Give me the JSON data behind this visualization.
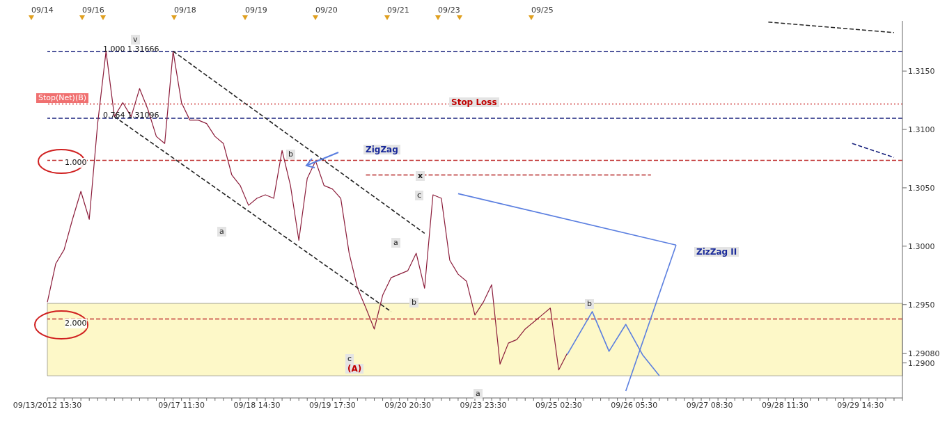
{
  "chart_data": {
    "type": "line",
    "marker": "none",
    "categories": [
      "09/13/2012 13:30",
      null,
      null,
      null,
      null,
      null,
      null,
      null,
      null,
      null,
      null,
      null,
      null,
      null,
      null,
      null,
      "09/17 11:30",
      null,
      null,
      null,
      null,
      null,
      null,
      null,
      null,
      "09/18 14:30",
      null,
      null,
      null,
      null,
      null,
      null,
      null,
      null,
      "09/19 17:30",
      null,
      null,
      null,
      null,
      null,
      null,
      null,
      null,
      "09/20 20:30",
      null,
      null,
      null,
      null,
      null,
      null,
      null,
      null,
      "09/23 23:30",
      null,
      null,
      null,
      null,
      null,
      null,
      null,
      null,
      "09/25 02:30",
      null,
      null,
      null,
      null,
      null,
      null,
      null,
      null,
      "09/26 05:30",
      null,
      null,
      null,
      null,
      null,
      null,
      null,
      null,
      "09/27 08:30",
      null,
      null,
      null,
      null,
      null,
      null,
      null,
      null,
      "09/28 11:30",
      null,
      null,
      null,
      null,
      null,
      null,
      null,
      null,
      "09/29 14:30",
      null,
      null,
      null,
      null,
      null
    ],
    "ylim": [
      1.287,
      1.3193
    ],
    "yticks": [
      {
        "value": 1.29,
        "label": "1.2900"
      },
      {
        "value": 1.2908,
        "label": "1.29080"
      },
      {
        "value": 1.295,
        "label": "1.2950"
      },
      {
        "value": 1.3,
        "label": "1.3000"
      },
      {
        "value": 1.305,
        "label": "1.3050"
      },
      {
        "value": 1.31,
        "label": "1.3100"
      },
      {
        "value": 1.315,
        "label": "1.3150"
      }
    ],
    "series": [
      {
        "color": "#8b1c3a",
        "line_style": "solid",
        "values": [
          1.2952,
          1.2985,
          1.2997,
          1.3023,
          1.3047,
          1.3023,
          1.3105,
          1.3167,
          1.3111,
          1.3123,
          1.3111,
          1.3135,
          1.3117,
          1.3094,
          1.3088,
          1.3167,
          1.3123,
          1.3108,
          1.3108,
          1.3105,
          1.3094,
          1.3088,
          1.3061,
          1.3052,
          1.3035,
          1.3041,
          1.3044,
          1.3041,
          1.3082,
          1.3052,
          1.3005,
          1.3058,
          1.3073,
          1.3052,
          1.3049,
          1.3041,
          1.2994,
          1.2964,
          1.2947,
          1.2929,
          1.2958,
          1.2973,
          1.2976,
          1.2979,
          1.2994,
          1.2964,
          1.3044,
          1.3041,
          1.2988,
          1.2976,
          1.297,
          1.2941,
          1.2952,
          1.2967,
          1.2899,
          1.2917,
          1.292,
          1.2929,
          1.2935,
          1.2941,
          1.2947,
          1.2894,
          1.2908,
          null,
          null,
          null,
          null,
          null,
          null,
          null,
          null,
          null,
          null,
          null,
          null,
          null,
          null,
          null,
          null,
          null,
          null,
          null,
          null,
          null,
          null,
          null,
          null,
          null,
          null,
          null,
          null,
          null,
          null,
          null,
          null,
          null,
          null,
          null,
          null,
          null,
          null,
          null,
          null
        ]
      },
      {
        "color": "#222222",
        "line_style": "dashed",
        "values": [
          null,
          null,
          null,
          null,
          null,
          null,
          null,
          null,
          null,
          null,
          null,
          null,
          null,
          null,
          null,
          1.3167,
          null,
          null,
          null,
          null,
          null,
          null,
          null,
          null,
          null,
          null,
          null,
          null,
          null,
          null,
          null,
          null,
          null,
          null,
          null,
          null,
          null,
          null,
          null,
          null,
          null,
          null,
          null,
          null,
          null,
          1.3011,
          null,
          null,
          null,
          null,
          null,
          null,
          null,
          null,
          null,
          null,
          null,
          null,
          null,
          null,
          null,
          null,
          null,
          null,
          null,
          null,
          null,
          null,
          null,
          null,
          null,
          null,
          null,
          null,
          null,
          null,
          null,
          null,
          null,
          null,
          null,
          null,
          null,
          null,
          null,
          null,
          null,
          null,
          null,
          null,
          null,
          null,
          null,
          null,
          null,
          null,
          null,
          null,
          null,
          null,
          null,
          null,
          null
        ]
      },
      {
        "color": "#222222",
        "line_style": "dashed",
        "values": [
          null,
          null,
          null,
          null,
          null,
          null,
          null,
          null,
          1.3111,
          null,
          null,
          null,
          null,
          null,
          null,
          null,
          null,
          null,
          null,
          null,
          null,
          null,
          null,
          null,
          null,
          null,
          null,
          null,
          null,
          null,
          null,
          null,
          null,
          null,
          null,
          null,
          null,
          null,
          null,
          null,
          null,
          1.2944,
          null,
          null,
          null,
          null,
          null,
          null,
          null,
          null,
          null,
          null,
          null,
          null,
          null,
          null,
          null,
          null,
          null,
          null,
          null,
          null,
          null,
          null,
          null,
          null,
          null,
          null,
          null,
          null,
          null,
          null,
          null,
          null,
          null,
          null,
          null,
          null,
          null,
          null,
          null,
          null,
          null,
          null,
          null,
          null,
          null,
          null,
          null,
          null,
          null,
          null,
          null,
          null,
          null,
          null,
          null,
          null,
          null,
          null,
          null,
          null,
          null
        ]
      },
      {
        "color": "#222222",
        "line_style": "dashed",
        "values": [
          null,
          null,
          null,
          null,
          null,
          null,
          null,
          null,
          null,
          null,
          null,
          null,
          null,
          null,
          null,
          null,
          null,
          null,
          null,
          null,
          null,
          null,
          null,
          null,
          null,
          null,
          null,
          null,
          null,
          null,
          null,
          null,
          null,
          null,
          null,
          null,
          null,
          null,
          null,
          null,
          null,
          null,
          null,
          null,
          null,
          null,
          null,
          null,
          null,
          null,
          null,
          null,
          null,
          null,
          null,
          null,
          null,
          null,
          null,
          null,
          null,
          null,
          null,
          null,
          null,
          null,
          null,
          null,
          null,
          null,
          null,
          null,
          null,
          null,
          null,
          null,
          null,
          null,
          null,
          null,
          null,
          null,
          null,
          null,
          null,
          null,
          1.3192,
          null,
          null,
          null,
          null,
          null,
          null,
          null,
          null,
          null,
          null,
          null,
          null,
          null,
          null,
          1.3183,
          null
        ]
      },
      {
        "color": "#1a237e",
        "line_style": "dashed",
        "values": [
          null,
          null,
          null,
          null,
          null,
          null,
          null,
          null,
          null,
          null,
          null,
          null,
          null,
          null,
          null,
          null,
          null,
          null,
          null,
          null,
          null,
          null,
          null,
          null,
          null,
          null,
          null,
          null,
          null,
          null,
          null,
          null,
          null,
          null,
          null,
          null,
          null,
          null,
          null,
          null,
          null,
          null,
          null,
          null,
          null,
          null,
          null,
          null,
          null,
          null,
          null,
          null,
          null,
          null,
          null,
          null,
          null,
          null,
          null,
          null,
          null,
          null,
          null,
          null,
          null,
          null,
          null,
          null,
          null,
          null,
          null,
          null,
          null,
          null,
          null,
          null,
          null,
          null,
          null,
          null,
          null,
          null,
          null,
          null,
          null,
          null,
          null,
          null,
          null,
          null,
          null,
          null,
          null,
          null,
          null,
          null,
          1.3088,
          null,
          null,
          null,
          null,
          1.3076,
          null
        ]
      },
      {
        "color": "#b22222",
        "line_style": "dashed",
        "values": [
          null,
          null,
          null,
          null,
          null,
          null,
          null,
          null,
          null,
          null,
          null,
          null,
          null,
          null,
          null,
          null,
          null,
          null,
          null,
          null,
          null,
          null,
          null,
          null,
          null,
          null,
          null,
          null,
          null,
          null,
          null,
          null,
          null,
          null,
          null,
          null,
          null,
          null,
          1.3061,
          null,
          null,
          null,
          null,
          null,
          null,
          null,
          null,
          null,
          null,
          null,
          null,
          null,
          null,
          null,
          null,
          null,
          null,
          null,
          null,
          null,
          null,
          null,
          null,
          null,
          null,
          null,
          null,
          null,
          null,
          null,
          null,
          null,
          1.3061,
          null,
          null,
          null,
          null,
          null,
          null,
          null,
          null,
          null,
          null,
          null,
          null,
          null,
          null,
          null,
          null,
          null,
          null,
          null,
          null,
          null,
          null,
          null,
          null,
          null,
          null,
          null,
          null,
          null,
          null
        ]
      },
      {
        "color": "#5b7fe0",
        "line_style": "solid",
        "values": [
          null,
          null,
          null,
          null,
          null,
          null,
          null,
          null,
          null,
          null,
          null,
          null,
          null,
          null,
          null,
          null,
          null,
          null,
          null,
          null,
          null,
          null,
          null,
          null,
          null,
          null,
          null,
          null,
          null,
          null,
          null,
          null,
          null,
          null,
          null,
          null,
          null,
          null,
          null,
          null,
          null,
          null,
          null,
          null,
          null,
          null,
          null,
          null,
          null,
          null,
          null,
          null,
          null,
          null,
          null,
          null,
          null,
          null,
          null,
          null,
          null,
          null,
          1.2907,
          null,
          null,
          1.2944,
          null,
          1.291,
          null,
          1.2933,
          null,
          1.2907,
          null,
          1.2889,
          null,
          null,
          null,
          null,
          null,
          null,
          null,
          null,
          null,
          null,
          null,
          null,
          null,
          null,
          null,
          null,
          null,
          null,
          null,
          null,
          null,
          null,
          null,
          null,
          null,
          null,
          null,
          null,
          null
        ]
      },
      {
        "color": "#5b7fe0",
        "line_style": "solid",
        "values": [
          null,
          null,
          null,
          null,
          null,
          null,
          null,
          null,
          null,
          null,
          null,
          null,
          null,
          null,
          null,
          null,
          null,
          null,
          null,
          null,
          null,
          null,
          null,
          null,
          null,
          null,
          null,
          null,
          null,
          null,
          null,
          null,
          null,
          null,
          null,
          null,
          null,
          null,
          null,
          null,
          null,
          null,
          null,
          null,
          null,
          null,
          null,
          null,
          null,
          1.3045,
          null,
          null,
          null,
          null,
          null,
          null,
          null,
          null,
          null,
          null,
          null,
          null,
          null,
          null,
          null,
          null,
          null,
          null,
          null,
          null,
          null,
          null,
          null,
          null,
          null,
          1.3001,
          null,
          null,
          null,
          null,
          null,
          null,
          null,
          null,
          null,
          null,
          null,
          null,
          null,
          null,
          null,
          null,
          null,
          null,
          null,
          null,
          null,
          null,
          null,
          null,
          null,
          null,
          null
        ]
      },
      {
        "color": "#5b7fe0",
        "line_style": "solid",
        "values": [
          null,
          null,
          null,
          null,
          null,
          null,
          null,
          null,
          null,
          null,
          null,
          null,
          null,
          null,
          null,
          null,
          null,
          null,
          null,
          null,
          null,
          null,
          null,
          null,
          null,
          null,
          null,
          null,
          null,
          null,
          null,
          null,
          null,
          null,
          null,
          null,
          null,
          null,
          null,
          null,
          null,
          null,
          null,
          null,
          null,
          null,
          null,
          null,
          null,
          null,
          null,
          null,
          null,
          null,
          null,
          null,
          null,
          null,
          null,
          null,
          null,
          null,
          null,
          null,
          null,
          null,
          null,
          null,
          null,
          1.2876,
          null,
          null,
          null,
          null,
          null,
          1.3001,
          null,
          null,
          null,
          null,
          null,
          null,
          null,
          null,
          null,
          null,
          null,
          null,
          null,
          null,
          null,
          null,
          null,
          null,
          null,
          null,
          null,
          null,
          null,
          null,
          null,
          null,
          null
        ]
      }
    ],
    "ref_lines": [
      {
        "axis": "y",
        "value": 1.31666,
        "color": "#1a237e",
        "line_style": "dashed"
      },
      {
        "axis": "y",
        "value": 1.31218,
        "color": "#d04040",
        "line_style": "dotted"
      },
      {
        "axis": "y",
        "value": 1.31096,
        "color": "#1a237e",
        "line_style": "dashed"
      },
      {
        "axis": "y",
        "value": 1.30735,
        "color": "#c03030",
        "line_style": "dashed"
      },
      {
        "axis": "y",
        "value": 1.29376,
        "color": "#c03030",
        "line_style": "dashed"
      }
    ],
    "bands": [
      {
        "axis": "y",
        "from": 1.2889,
        "to": 1.2951,
        "color": "#fdf8c8"
      }
    ],
    "annotations": [
      "v",
      "1.000 1.31666",
      "Stop(Net)(B)",
      "Stop Loss",
      "0.764 1.31096",
      "1.000",
      "2.000",
      "b",
      "ZigZag",
      "x",
      "c",
      "a",
      "a",
      "b",
      "c",
      "(A)",
      "ZizZag II",
      "b",
      "a",
      "09/14",
      "09/16",
      "09/18",
      "09/19",
      "09/20",
      "09/21",
      "09/23",
      "09/25"
    ]
  }
}
